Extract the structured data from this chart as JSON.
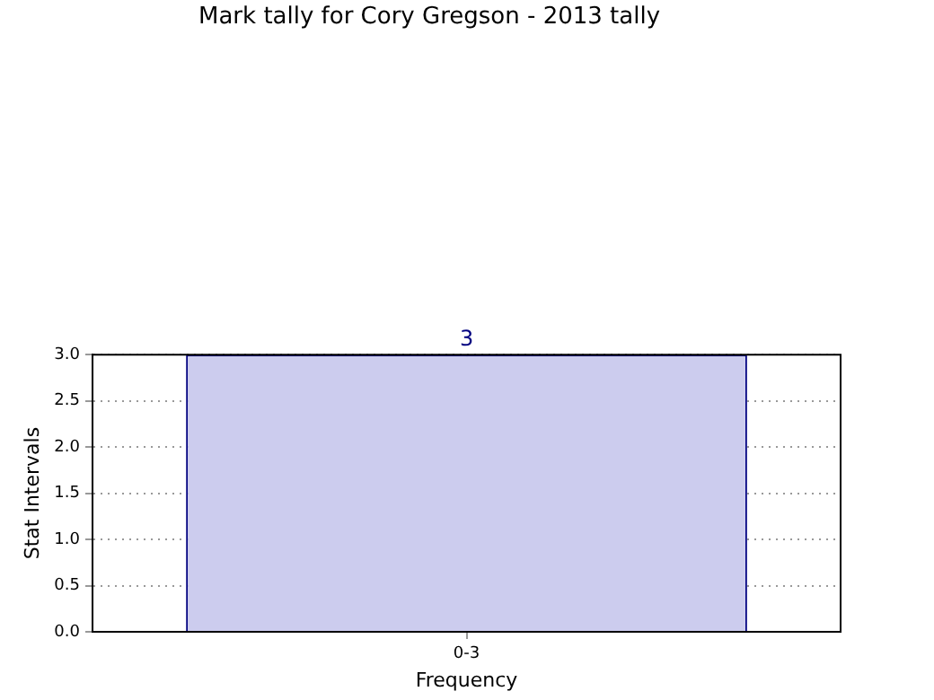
{
  "chart_data": {
    "type": "bar",
    "title": "Mark tally for Cory Gregson - 2013 tally",
    "xlabel": "Frequency",
    "ylabel": "Stat Intervals",
    "categories": [
      "0-3"
    ],
    "values": [
      3
    ],
    "color": "#ccccee",
    "data_labels": true,
    "ylim": [
      0,
      3
    ],
    "yticks": [
      {
        "value": 0,
        "label": "0.0"
      },
      0.5,
      {
        "value": 1,
        "label": "1.0"
      },
      1.5,
      {
        "value": 2,
        "label": "2.0"
      },
      2.5,
      {
        "value": 3,
        "label": "3.0"
      }
    ],
    "grid": true,
    "line_style": "dotted"
  }
}
